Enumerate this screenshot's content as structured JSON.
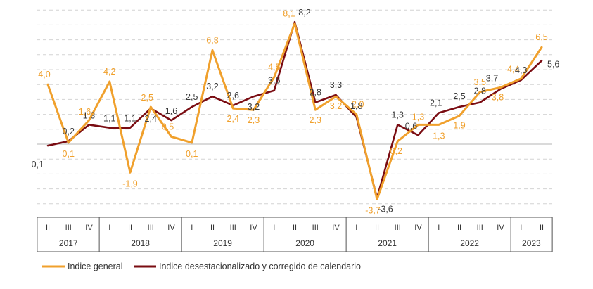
{
  "chart_data": {
    "type": "line",
    "title": "",
    "xlabel": "",
    "ylabel": "",
    "ylim": [
      -5,
      9
    ],
    "grid": "horizontal dashed",
    "legend_position": "bottom-left",
    "categories": [
      "II",
      "III",
      "IV",
      "I",
      "II",
      "III",
      "IV",
      "I",
      "II",
      "III",
      "IV",
      "I",
      "II",
      "III",
      "IV",
      "I",
      "II",
      "III",
      "IV",
      "I",
      "II",
      "III",
      "IV",
      "I",
      "II"
    ],
    "years": [
      {
        "label": "2017",
        "quarters": 3
      },
      {
        "label": "2018",
        "quarters": 4
      },
      {
        "label": "2019",
        "quarters": 4
      },
      {
        "label": "2020",
        "quarters": 4
      },
      {
        "label": "2021",
        "quarters": 4
      },
      {
        "label": "2022",
        "quarters": 4
      },
      {
        "label": "2023",
        "quarters": 2
      }
    ],
    "series": [
      {
        "name": "Indice general",
        "color": "#f0a02c",
        "values": [
          4.0,
          0.1,
          1.6,
          4.2,
          -1.9,
          2.5,
          0.5,
          0.1,
          6.3,
          2.4,
          2.3,
          4.5,
          8.1,
          2.3,
          3.2,
          2.0,
          -3.7,
          0.2,
          1.3,
          1.3,
          1.9,
          3.5,
          3.8,
          4.4,
          6.5
        ],
        "labels": [
          "4,0",
          "0,1",
          "1,6",
          "4,2",
          "-1,9",
          "2,5",
          "0,5",
          "0,1",
          "6,3",
          "2,4",
          "2,3",
          "4,5",
          "8,1",
          "2,3",
          "3,2",
          "2,0",
          "-3,7",
          "0,2",
          "1,3",
          "1,3",
          "1,9",
          "3,5",
          "3,8",
          "4,4",
          "6,5"
        ]
      },
      {
        "name": "Indice desestacionalizado y corregido de calendario",
        "color": "#7a0c12",
        "values": [
          -0.1,
          0.2,
          1.3,
          1.1,
          1.1,
          2.4,
          1.6,
          2.5,
          3.2,
          2.6,
          3.2,
          3.6,
          8.2,
          2.8,
          3.3,
          1.8,
          -3.6,
          1.3,
          0.6,
          2.1,
          2.5,
          2.8,
          3.7,
          4.3,
          5.6
        ],
        "labels": [
          "-0,1",
          "0,2",
          "1,3",
          "1,1",
          "1,1",
          "2,4",
          "1,6",
          "2,5",
          "3,2",
          "2,6",
          "3,2",
          "3,6",
          "8,2",
          "2,8",
          "3,3",
          "1,8",
          "-3,6",
          "1,3",
          "0,6",
          "2,1",
          "2,5",
          "2,8",
          "3,7",
          "4,3",
          "5,6"
        ]
      }
    ]
  }
}
